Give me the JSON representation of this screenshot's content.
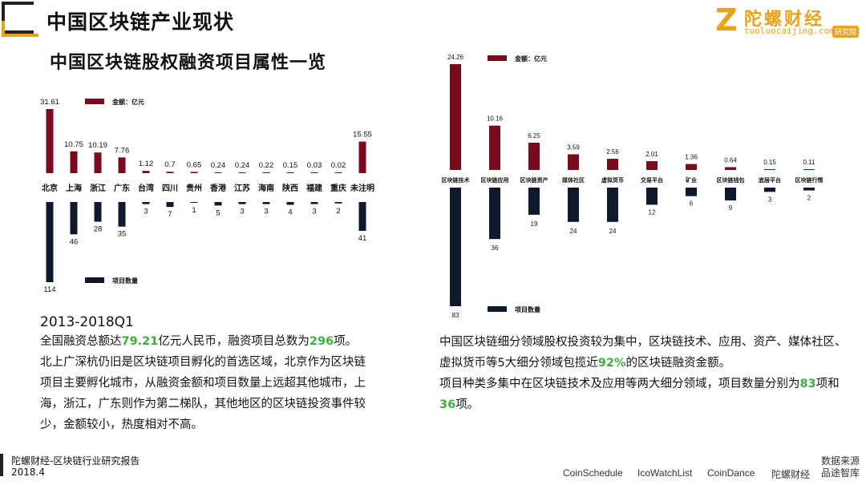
{
  "header": {
    "page_title": "中国区块链产业现状",
    "chart_title": "中国区块链股权融资项目属性一览"
  },
  "logo": {
    "cn": "陀螺财经",
    "en": "tuoluocaijing.com",
    "badge": "研究院",
    "letter": "Z"
  },
  "colors": {
    "amount": "#7a0b1c",
    "count": "#0e1a2b",
    "highlight": "#3fae3f",
    "accent": "#e6a31b"
  },
  "chart_data": [
    {
      "type": "bar",
      "categories": [
        "北京",
        "上海",
        "浙江",
        "广东",
        "台湾",
        "四川",
        "贵州",
        "香港",
        "江苏",
        "海南",
        "陕西",
        "福建",
        "重庆",
        "未注明"
      ],
      "series": [
        {
          "name": "金额：亿元",
          "values": [
            31.61,
            10.75,
            10.19,
            7.76,
            1.12,
            0.7,
            0.65,
            0.24,
            0.24,
            0.22,
            0.15,
            0.03,
            0.02,
            15.55
          ],
          "labels": [
            "31.61",
            "10.75",
            "10.19",
            "7.76",
            "1.12",
            "0.7",
            "0.65",
            "0.24",
            "0.24",
            "0.22",
            "0.15",
            "0.03",
            "0.02",
            "15.55"
          ]
        },
        {
          "name": "项目数量",
          "values": [
            114,
            46,
            28,
            35,
            3,
            7,
            1,
            5,
            3,
            3,
            4,
            3,
            2,
            41
          ]
        }
      ]
    },
    {
      "type": "bar",
      "categories": [
        "区块链技术",
        "区块链应用",
        "区块链资产",
        "媒体社区",
        "虚拟货币",
        "交易平台",
        "矿业",
        "区块链钱包",
        "底层平台",
        "区块链行情"
      ],
      "series": [
        {
          "name": "金额：亿元",
          "values": [
            24.26,
            10.16,
            6.25,
            3.59,
            2.56,
            2.01,
            1.36,
            0.64,
            0.15,
            0.11
          ]
        },
        {
          "name": "项目数量",
          "values": [
            83,
            36,
            19,
            24,
            24,
            12,
            6,
            9,
            3,
            2
          ]
        }
      ]
    }
  ],
  "left_text": {
    "heading": "2013-2018Q1",
    "p1_a": "全国融资总额达",
    "p1_b": "79.21",
    "p1_c": "亿元人民币，融资项目总数为",
    "p1_d": "296",
    "p1_e": "项。",
    "p2": "北上广深杭仍旧是区块链项目孵化的首选区域，北京作为区块链项目主要孵化城市，从融资金额和项目数量上远超其他城市，上海，浙江，广东则作为第二梯队，其他地区的区块链投资事件较少，金额较小，热度相对不高。"
  },
  "right_text": {
    "p1_a": "中国区块链细分领域股权投资较为集中，区块链技术、应用、资产、媒体社区、虚拟货币等5大细分领域包揽近",
    "p1_b": "92%",
    "p1_c": "的区块链融资金额。",
    "p2_a": "项目种类多集中在区块链技术及应用等两大细分领域，项目数量分别为",
    "p2_b": "83",
    "p2_c": "项和",
    "p2_d": "36",
    "p2_e": "项。"
  },
  "footer": {
    "line1": "陀螺财经-区块链行业研究报告",
    "line2": "2018.4",
    "sources": [
      "CoinSchedule",
      "IcoWatchList",
      "CoinDance",
      "陀螺财经"
    ],
    "sources_label": "数据来源品途智库"
  }
}
